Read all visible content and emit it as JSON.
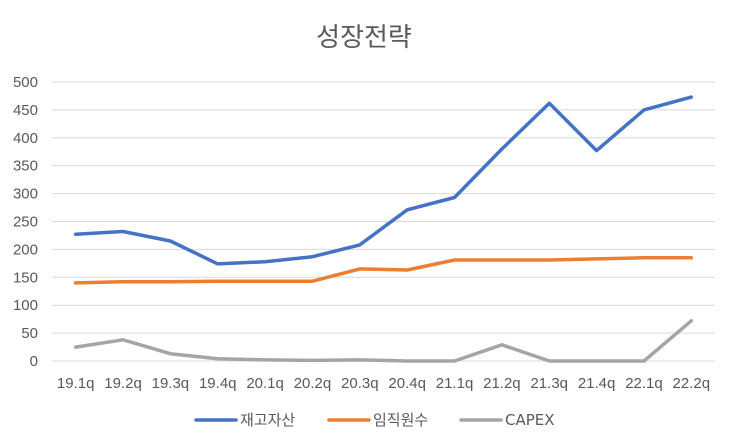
{
  "chart_data": {
    "type": "line",
    "title": "성장전략",
    "xlabel": "",
    "ylabel": "",
    "ylim": [
      0,
      500
    ],
    "yticks": [
      0,
      50,
      100,
      150,
      200,
      250,
      300,
      350,
      400,
      450,
      500
    ],
    "grid": true,
    "legend_position": "bottom",
    "categories": [
      "19.1q",
      "19.2q",
      "19.3q",
      "19.4q",
      "20.1q",
      "20.2q",
      "20.3q",
      "20.4q",
      "21.1q",
      "21.2q",
      "21.3q",
      "21.4q",
      "22.1q",
      "22.2q"
    ],
    "series": [
      {
        "name": "재고자산",
        "color": "#4472C4",
        "values": [
          227,
          232,
          215,
          174,
          178,
          187,
          208,
          271,
          293,
          380,
          462,
          377,
          450,
          473
        ]
      },
      {
        "name": "임직원수",
        "color": "#ED7D31",
        "values": [
          140,
          142,
          142,
          143,
          143,
          143,
          165,
          163,
          181,
          181,
          181,
          183,
          185,
          185
        ]
      },
      {
        "name": "CAPEX",
        "color": "#A5A5A5",
        "values": [
          25,
          38,
          13,
          4,
          2,
          1,
          2,
          0,
          0,
          29,
          0,
          0,
          0,
          72
        ]
      }
    ]
  }
}
